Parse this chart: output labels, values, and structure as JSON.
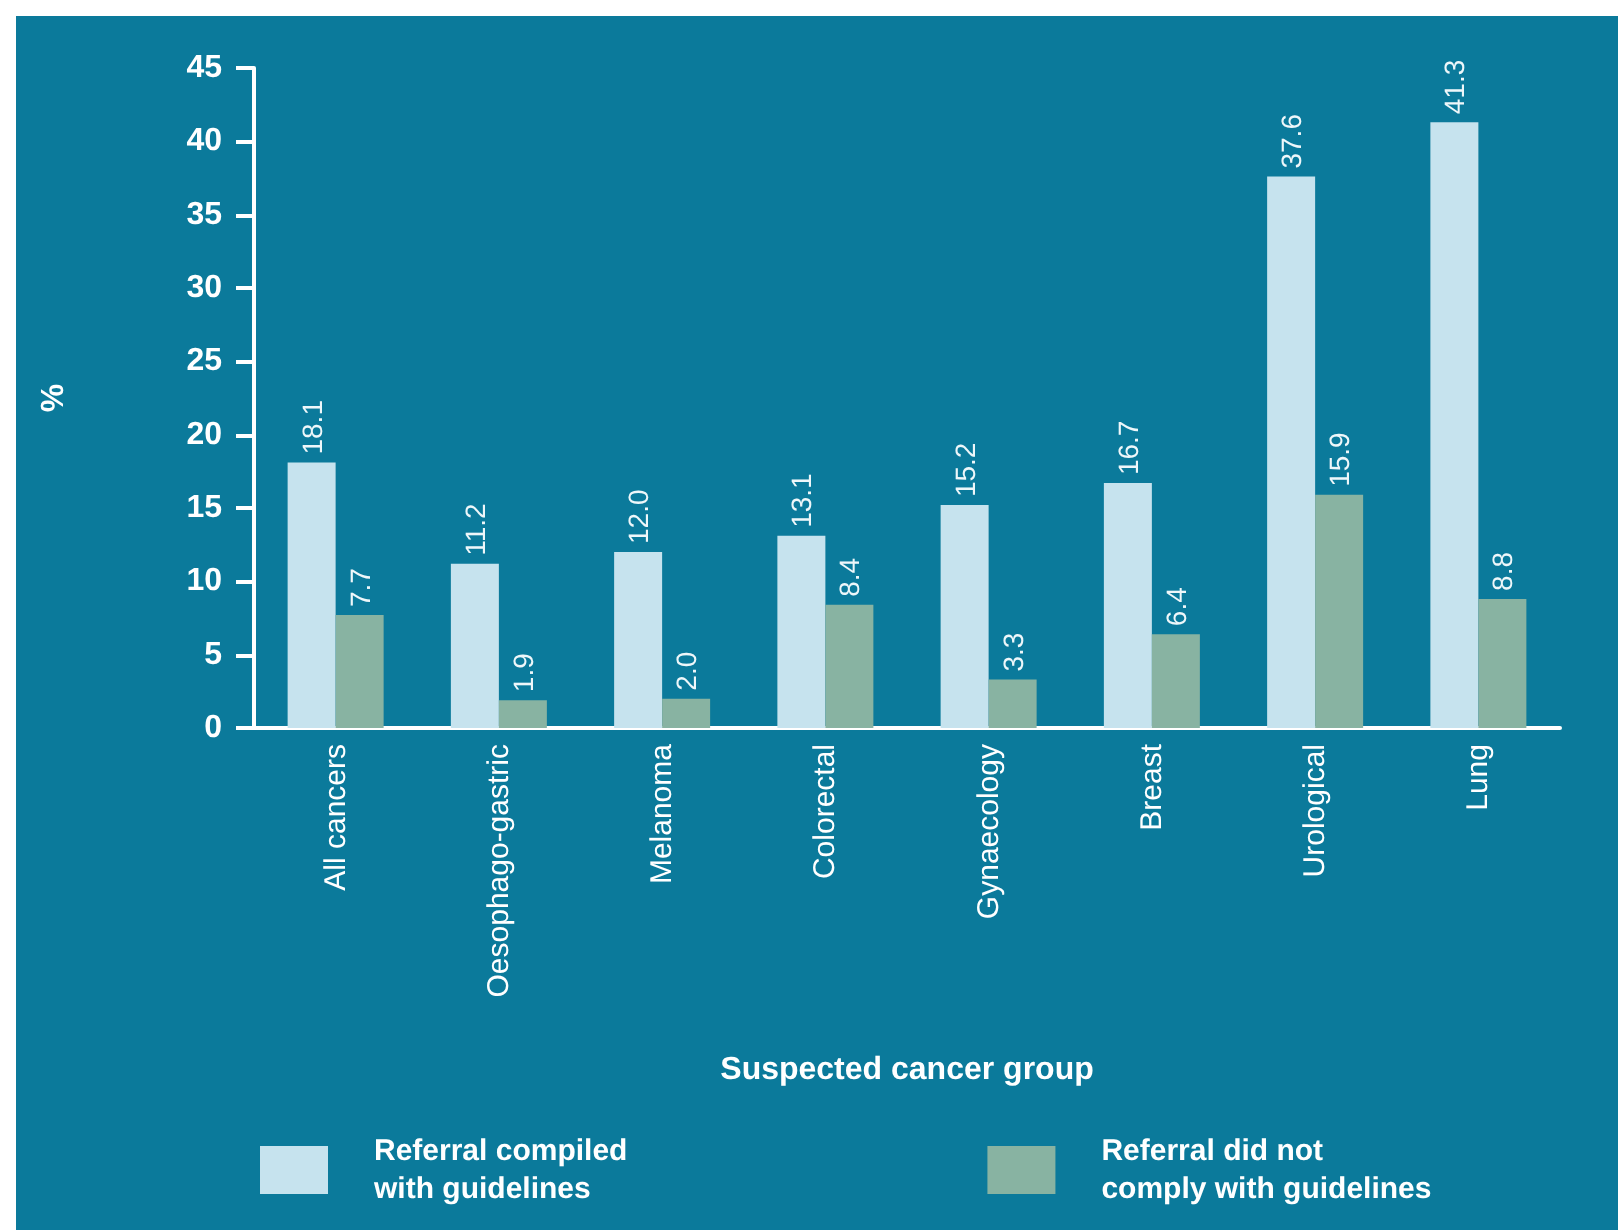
{
  "chart_data": {
    "type": "bar",
    "categories": [
      "All cancers",
      "Oesophago-gastric",
      "Melanoma",
      "Colorectal",
      "Gynaecology",
      "Breast",
      "Urological",
      "Lung"
    ],
    "series": [
      {
        "name": "Referral compiled with guidelines",
        "color": "#c6e3ee",
        "values": [
          18.1,
          11.2,
          12.0,
          13.1,
          15.2,
          16.7,
          37.6,
          41.3
        ],
        "value_labels": [
          "18.1",
          "11.2",
          "12.0",
          "13.1",
          "15.2",
          "16.7",
          "37.6",
          "41.3"
        ]
      },
      {
        "name": "Referral did not comply with guidelines",
        "color": "#88b3a2",
        "values": [
          7.7,
          1.9,
          2.0,
          8.4,
          3.3,
          6.4,
          15.9,
          8.8
        ],
        "value_labels": [
          "7.7",
          "1.9",
          "2.0",
          "8.4",
          "3.3",
          "6.4",
          "15.9",
          "8.8"
        ]
      }
    ],
    "xlabel": "Suspected cancer group",
    "ylabel": "%",
    "ylim": [
      0,
      45
    ],
    "yticks": [
      0,
      5,
      10,
      15,
      20,
      25,
      30,
      35,
      40,
      45
    ],
    "grid": false,
    "legend": "bottom"
  }
}
